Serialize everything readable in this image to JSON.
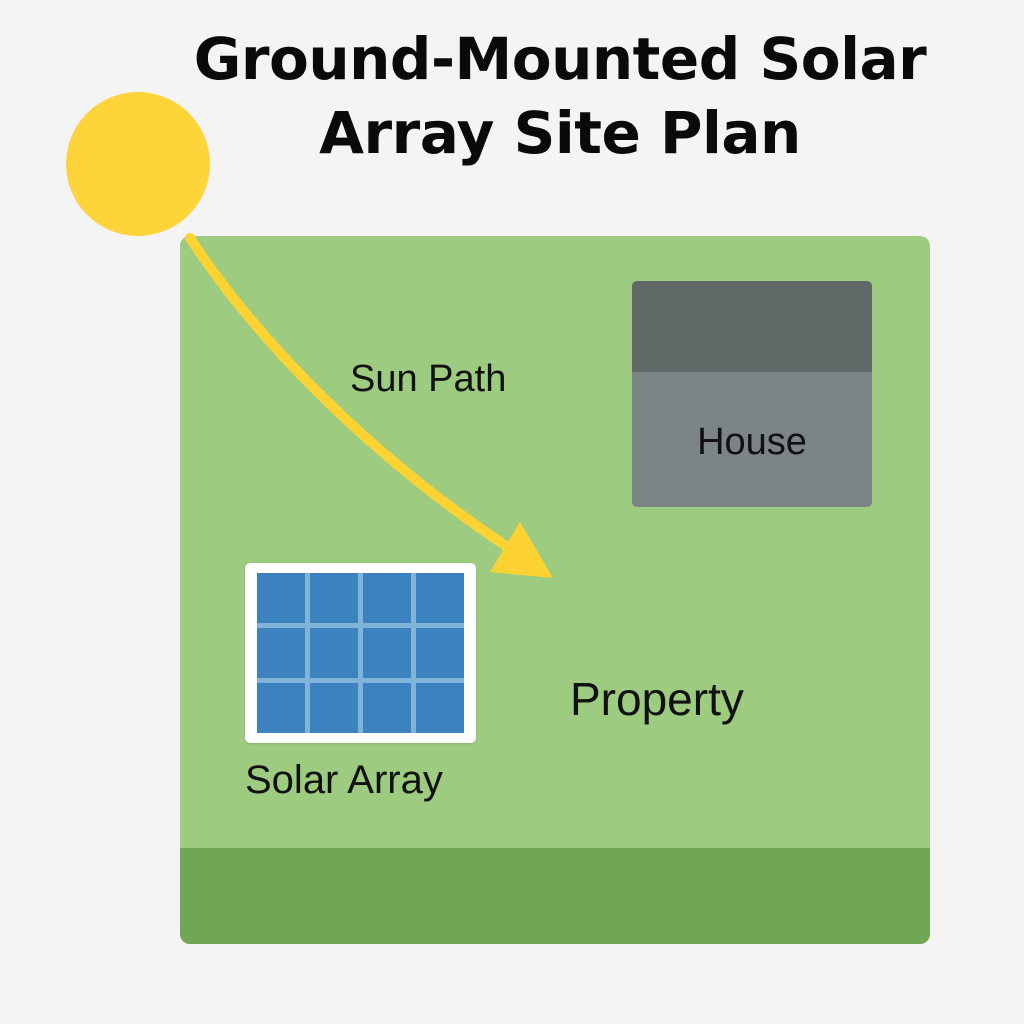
{
  "title": {
    "line1": "Ground-Mounted Solar",
    "line2": "Array Site Plan"
  },
  "labels": {
    "sun_path": "Sun Path",
    "house": "House",
    "property": "Property",
    "solar_array": "Solar Array"
  },
  "solar_array": {
    "rows": 3,
    "columns": 4
  },
  "colors": {
    "sun": "#fdd43a",
    "sun_path_arrow": "#fcd332",
    "property_grass": "#9dcb80",
    "property_strip": "#71a655",
    "house_body": "#7b8585",
    "house_roof": "#5f6767",
    "panel_cell": "#3b82bf",
    "panel_frame": "#ffffff"
  }
}
